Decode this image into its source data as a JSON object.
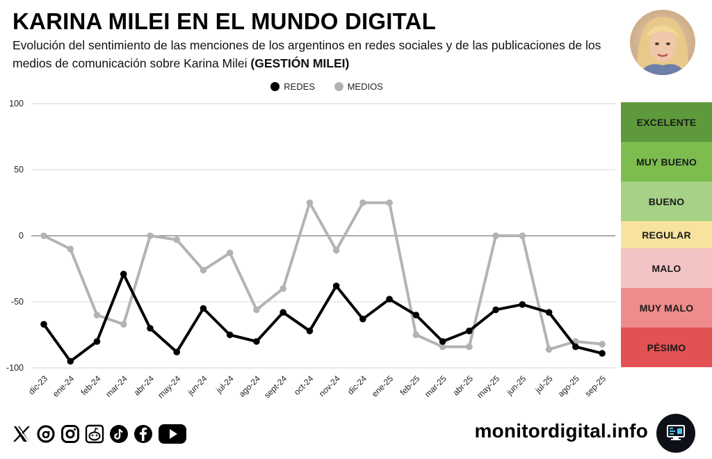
{
  "header": {
    "title": "KARINA MILEI EN EL MUNDO DIGITAL",
    "subtitle_regular": "Evolución del sentimiento de las menciones de los argentinos en redes sociales y de las publicaciones de los medios de comunicación sobre Karina Milei ",
    "subtitle_bold": "(GESTIÓN MILEI)"
  },
  "avatar_icon": "woman-portrait-photo",
  "chart_data": {
    "type": "line",
    "title": "",
    "xlabel": "",
    "ylabel": "",
    "ylim": [
      -100,
      100
    ],
    "yticks": [
      100,
      50,
      0,
      -50,
      -100
    ],
    "grid": true,
    "legend_placement": "top-center",
    "categories": [
      "dic-23",
      "ene-24",
      "feb-24",
      "mar-24",
      "abr-24",
      "may-24",
      "jun-24",
      "jul-24",
      "ago-24",
      "sept-24",
      "oct-24",
      "nov-24",
      "dic-24",
      "ene-25",
      "feb-25",
      "mar-25",
      "abr-25",
      "may-25",
      "jun-25",
      "jul-25",
      "ago-25",
      "sep-25"
    ],
    "series": [
      {
        "name": "REDES",
        "color": "#000000",
        "values": [
          -67,
          -95,
          -80,
          -29,
          -70,
          -88,
          -55,
          -75,
          -80,
          -58,
          -72,
          -38,
          -63,
          -48,
          -60,
          -80,
          -72,
          -56,
          -52,
          -58,
          -84,
          -89
        ]
      },
      {
        "name": "MEDIOS",
        "color": "#b3b3b3",
        "values": [
          0,
          -10,
          -60,
          -67,
          0,
          -3,
          -26,
          -13,
          -56,
          -40,
          25,
          -11,
          25,
          25,
          -75,
          -84,
          -84,
          0,
          0,
          -86,
          -80,
          -82
        ]
      }
    ]
  },
  "scale": [
    {
      "label": "EXCELENTE",
      "color": "#5e9a3c"
    },
    {
      "label": "MUY BUENO",
      "color": "#7dbd4f"
    },
    {
      "label": "BUENO",
      "color": "#a7d186"
    },
    {
      "label": "REGULAR",
      "color": "#f7e39e"
    },
    {
      "label": "MALO",
      "color": "#f4c3c3"
    },
    {
      "label": "MUY MALO",
      "color": "#ee8b8b"
    },
    {
      "label": "PÉSIMO",
      "color": "#e35252"
    }
  ],
  "footer": {
    "social_icons": [
      "x-icon",
      "threads-icon",
      "instagram-icon",
      "reddit-icon",
      "tiktok-icon",
      "facebook-icon",
      "youtube-icon"
    ],
    "site": "monitordigital.info",
    "site_logo_icon": "monitor-logo-icon"
  }
}
